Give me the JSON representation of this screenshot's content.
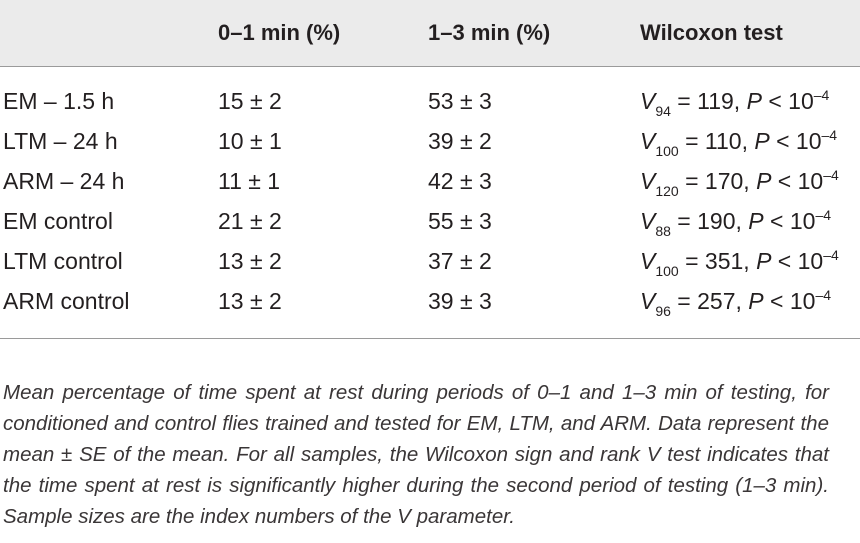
{
  "table": {
    "headers": [
      "",
      "0–1 min (%)",
      "1–3 min (%)",
      "Wilcoxon test"
    ],
    "rows": [
      {
        "label": "EM – 1.5 h",
        "m01": "15 ± 2",
        "m13": "53 ± 3",
        "v": "V",
        "v_index": "94",
        "v_value": " = 119, ",
        "p": "P",
        "p_rel": " < 10",
        "p_exp": "–4"
      },
      {
        "label": "LTM – 24 h",
        "m01": "10 ± 1",
        "m13": "39 ± 2",
        "v": "V",
        "v_index": "100",
        "v_value": " = 110, ",
        "p": "P",
        "p_rel": " < 10",
        "p_exp": "–4"
      },
      {
        "label": "ARM – 24 h",
        "m01": "11 ± 1",
        "m13": "42 ± 3",
        "v": "V",
        "v_index": "120",
        "v_value": " = 170, ",
        "p": "P",
        "p_rel": " < 10",
        "p_exp": "–4"
      },
      {
        "label": "EM control",
        "m01": "21 ± 2",
        "m13": "55 ± 3",
        "v": "V",
        "v_index": "88",
        "v_value": " = 190, ",
        "p": "P",
        "p_rel": " < 10",
        "p_exp": "–4"
      },
      {
        "label": "LTM control",
        "m01": "13 ± 2",
        "m13": "37 ± 2",
        "v": "V",
        "v_index": "100",
        "v_value": " = 351, ",
        "p": "P",
        "p_rel": " < 10",
        "p_exp": "–4"
      },
      {
        "label": "ARM control",
        "m01": "13 ± 2",
        "m13": "39 ± 3",
        "v": "V",
        "v_index": "96",
        "v_value": " = 257, ",
        "p": "P",
        "p_rel": " < 10",
        "p_exp": "–4"
      }
    ]
  },
  "caption": "Mean percentage of time spent at rest during periods of 0–1 and 1–3 min of testing, for conditioned and control flies trained and tested for EM, LTM, and ARM. Data represent the mean ± SE of the mean. For all samples, the Wilcoxon sign and rank V test indicates that the time spent at rest is significantly higher during the second period of testing (1–3 min). Sample sizes are the index numbers of the V parameter.",
  "colors": {
    "header_background": "#ebebeb",
    "rule": "#9a9a9a",
    "text": "#231f20"
  }
}
